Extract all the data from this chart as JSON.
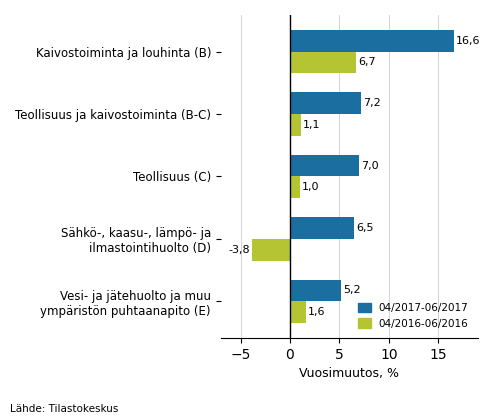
{
  "categories": [
    "Kaivostoiminta ja louhinta (B)",
    "Teollisuus ja kaivostoiminta (B-C)",
    "Teollisuus (C)",
    "Sähkö-, kaasu-, lämpö- ja\nilmastointihuolto (D)",
    "Vesi- ja jätehuolto ja muu\nympäristön puhtaanapito (E)"
  ],
  "values_2017": [
    16.6,
    7.2,
    7.0,
    6.5,
    5.2
  ],
  "values_2016": [
    6.7,
    1.1,
    1.0,
    -3.8,
    1.6
  ],
  "color_2017": "#1a6fa0",
  "color_2016": "#b5c433",
  "legend_2017": "04/2017-06/2017",
  "legend_2016": "04/2016-06/2016",
  "xlabel": "Vuosimuutos, %",
  "xlim": [
    -7,
    19
  ],
  "xticks": [
    -5,
    0,
    5,
    10,
    15
  ],
  "source": "Lähde: Tilastokeskus",
  "bar_height": 0.35
}
